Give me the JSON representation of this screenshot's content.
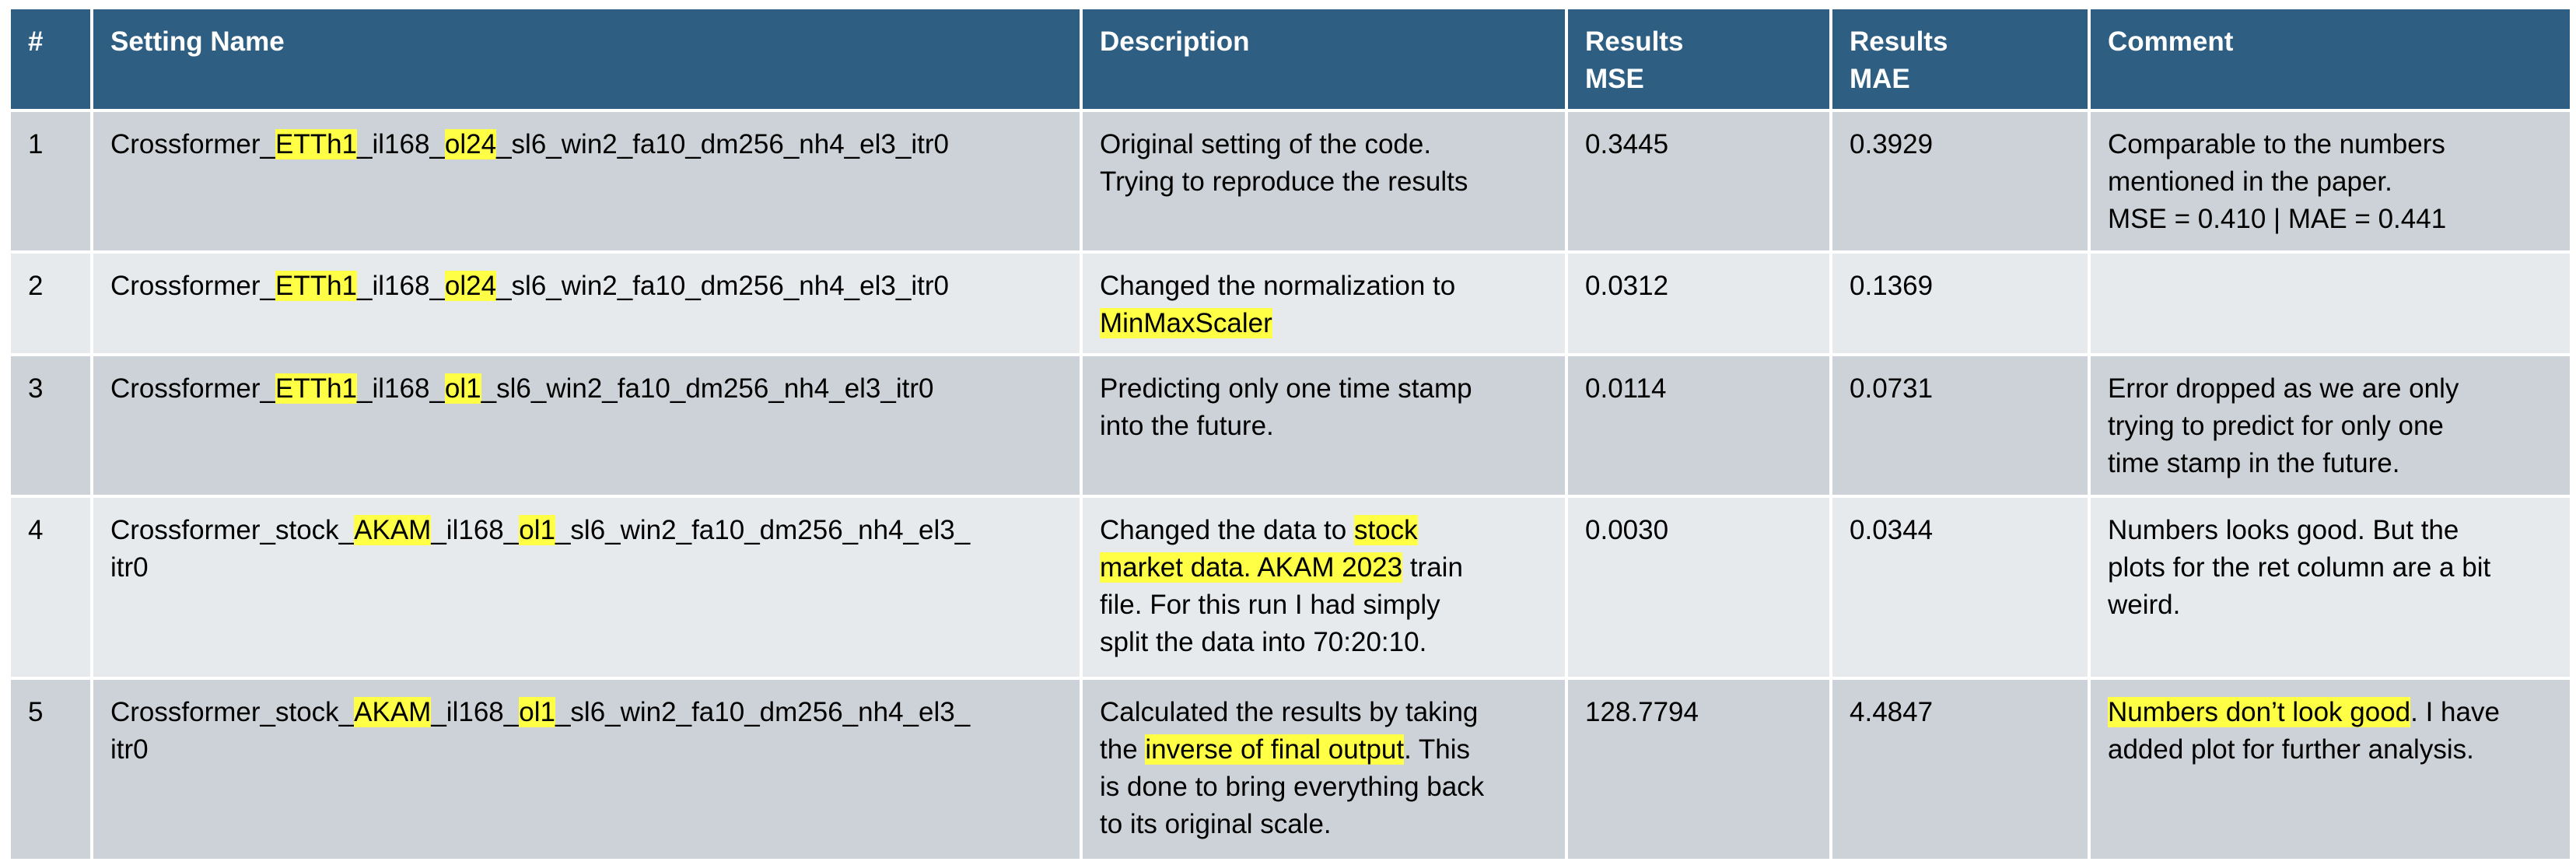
{
  "header": {
    "index": "#",
    "setting_name": "Setting Name",
    "description": "Description",
    "mse": [
      "Results",
      "MSE"
    ],
    "mae": [
      "Results",
      "MAE"
    ],
    "comment": "Comment"
  },
  "highlight_color": "#ffff45",
  "header_color": "#2e5f83",
  "rows": [
    {
      "index": "1",
      "setting": [
        "Crossformer_",
        "ETTh1",
        "_il168_",
        "ol24",
        "_sl6_win2_fa10_dm256_nh4_el3_itr0"
      ],
      "description_lines": [
        "Original setting of the code.",
        "Trying to reproduce the results"
      ],
      "mse": "0.3445",
      "mae": "0.3929",
      "comment_lines": [
        "Comparable to the numbers",
        "mentioned in the paper.",
        "MSE = 0.410 | MAE = 0.441"
      ]
    },
    {
      "index": "2",
      "setting": [
        "Crossformer_",
        "ETTh1",
        "_il168_",
        "ol24",
        "_sl6_win2_fa10_dm256_nh4_el3_itr0"
      ],
      "description_lines": [
        "Changed the normalization to",
        "MinMaxScaler"
      ],
      "mse": "0.0312",
      "mae": "0.1369",
      "comment_lines": []
    },
    {
      "index": "3",
      "setting": [
        "Crossformer_",
        "ETTh1",
        "_il168_",
        "ol1",
        "_sl6_win2_fa10_dm256_nh4_el3_itr0"
      ],
      "description_lines": [
        "Predicting only one time stamp",
        "into the future."
      ],
      "mse": "0.0114",
      "mae": "0.0731",
      "comment_lines": [
        "Error dropped as we are only",
        "trying to predict for only one",
        "time stamp in the future."
      ]
    },
    {
      "index": "4",
      "setting": [
        "Crossformer_stock_",
        "AKAM",
        "_il168_",
        "ol1",
        "_sl6_win2_fa10_dm256_nh4_el3_",
        "itr0"
      ],
      "description": {
        "l1_pre": "Changed the data to ",
        "l1_hl": "stock",
        "l2_hl": "market data. AKAM 2023",
        "l2_post": " train",
        "l3": "file. For this run I had simply",
        "l4": "split the data into 70:20:10."
      },
      "mse": "0.0030",
      "mae": "0.0344",
      "comment_lines": [
        "Numbers looks good. But the",
        "plots for the ret column are a bit",
        "weird."
      ]
    },
    {
      "index": "5",
      "setting": [
        "Crossformer_stock_",
        "AKAM",
        "_il168_",
        "ol1",
        "_sl6_win2_fa10_dm256_nh4_el3_",
        "itr0"
      ],
      "description": {
        "l1": "Calculated the results by taking",
        "l2_pre": "the ",
        "l2_hl": "inverse of final output",
        "l2_post": ". This",
        "l3": "is done to bring everything back",
        "l4": "to its original scale."
      },
      "mse": "128.7794",
      "mae": "4.4847",
      "comment": {
        "l1_hl": "Numbers don’t look good",
        "l1_post": ". I have",
        "l2": "added plot for further analysis."
      }
    }
  ]
}
